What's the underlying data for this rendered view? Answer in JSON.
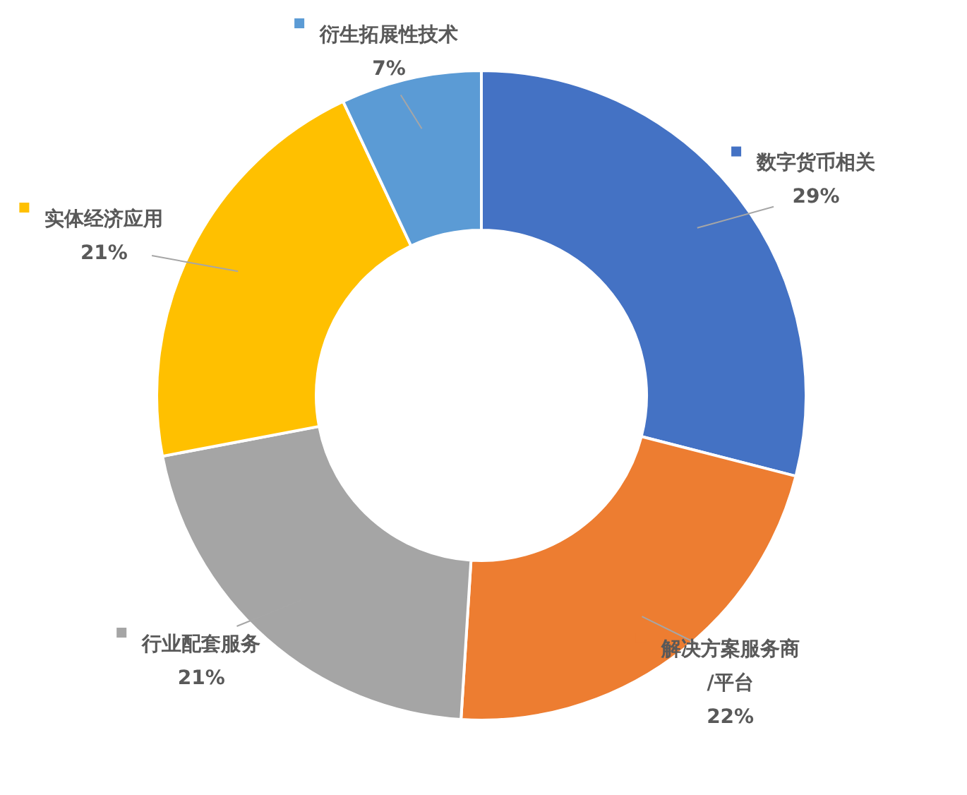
{
  "chart_data": {
    "type": "donut",
    "categories": [
      "数字货币相关",
      "解决方案服务商/平台",
      "行业配套服务",
      "实体经济应用",
      "衍生拓展性技术"
    ],
    "values": [
      29,
      22,
      21,
      21,
      7
    ],
    "colors": [
      "#4472c4",
      "#ed7d31",
      "#a5a5a5",
      "#ffc000",
      "#5b9bd5"
    ],
    "value_labels": [
      "29%",
      "22%",
      "21%",
      "21%",
      "7%"
    ],
    "legend": "top left"
  }
}
